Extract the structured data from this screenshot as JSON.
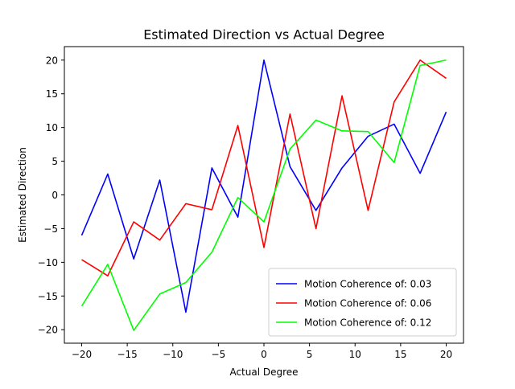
{
  "chart_data": {
    "type": "line",
    "title": "Estimated Direction vs Actual Degree",
    "xlabel": "Actual Degree",
    "ylabel": "Estimated Direction",
    "xlim": [
      -21.9,
      21.9
    ],
    "ylim": [
      -22.0,
      22.0
    ],
    "x_ticks": [
      -20,
      -15,
      -10,
      -5,
      0,
      5,
      10,
      15,
      20
    ],
    "y_ticks": [
      -20,
      -15,
      -10,
      -5,
      0,
      5,
      10,
      15,
      20
    ],
    "x_tick_labels": [
      "−20",
      "−15",
      "−10",
      "−5",
      "0",
      "5",
      "10",
      "15",
      "20"
    ],
    "y_tick_labels": [
      "−20",
      "−15",
      "−10",
      "−5",
      "0",
      "5",
      "10",
      "15",
      "20"
    ],
    "grid": false,
    "legend_position": "lower-right",
    "x": [
      -20,
      -17.14,
      -14.29,
      -11.43,
      -8.57,
      -5.71,
      -2.86,
      0,
      2.86,
      5.71,
      8.57,
      11.43,
      14.29,
      17.14,
      20
    ],
    "series": [
      {
        "name": "Motion Coherence of: 0.03",
        "color": "#0000ff",
        "values": [
          -6.0,
          3.1,
          -9.5,
          2.2,
          -17.4,
          4.0,
          -3.3,
          20.0,
          4.2,
          -2.3,
          4.0,
          8.7,
          10.5,
          3.2,
          12.3
        ]
      },
      {
        "name": "Motion Coherence of: 0.06",
        "color": "#ff0000",
        "values": [
          -9.6,
          -12.0,
          -4.0,
          -6.7,
          -1.3,
          -2.2,
          10.3,
          -7.8,
          12.0,
          -5.0,
          14.7,
          -2.3,
          13.8,
          20.0,
          17.3
        ]
      },
      {
        "name": "Motion Coherence of: 0.12",
        "color": "#00ff00",
        "values": [
          -16.5,
          -10.3,
          -20.1,
          -14.7,
          -13.0,
          -8.5,
          -0.4,
          -4.0,
          6.8,
          11.1,
          9.5,
          9.4,
          4.8,
          19.2,
          20.0
        ]
      }
    ]
  }
}
